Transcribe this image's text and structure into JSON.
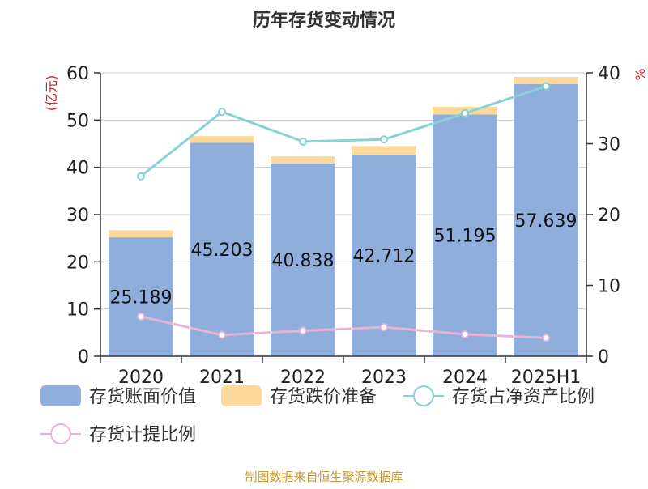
{
  "title": "历年存货变动情况",
  "source_note": "制图数据来自恒生聚源数据库",
  "chart_data": {
    "type": "bar",
    "title": "历年存货变动情况",
    "categories": [
      "2020",
      "2021",
      "2022",
      "2023",
      "2024",
      "2025H1"
    ],
    "y_left_label": "(亿元)",
    "y_left_ticks": [
      0,
      10,
      20,
      30,
      40,
      50,
      60
    ],
    "y_right_label": "%",
    "y_right_ticks": [
      0,
      10,
      20,
      30,
      40
    ],
    "ylim_left": [
      0,
      60
    ],
    "ylim_right": [
      0,
      40
    ],
    "stacked_bars": [
      {
        "name": "存货账面价值",
        "color": "#8faedb",
        "values": [
          25.189,
          45.203,
          40.838,
          42.712,
          51.195,
          57.639
        ],
        "labels": [
          "25.189",
          "45.203",
          "40.838",
          "42.712",
          "51.195",
          "57.639"
        ]
      },
      {
        "name": "存货跌价准备",
        "color": "#fdd89b",
        "values": [
          1.5,
          1.4,
          1.5,
          1.8,
          1.6,
          1.5
        ]
      }
    ],
    "lines": [
      {
        "name": "存货占净资产比例",
        "color": "#85d3d6",
        "axis": "right",
        "values": [
          25.4,
          34.5,
          30.3,
          30.6,
          34.3,
          38.1
        ]
      },
      {
        "name": "存货计提比例",
        "color": "#e8b3d6",
        "axis": "right",
        "values": [
          5.6,
          3.0,
          3.6,
          4.1,
          3.1,
          2.6
        ]
      }
    ],
    "legend_position": "bottom",
    "grid": true
  }
}
